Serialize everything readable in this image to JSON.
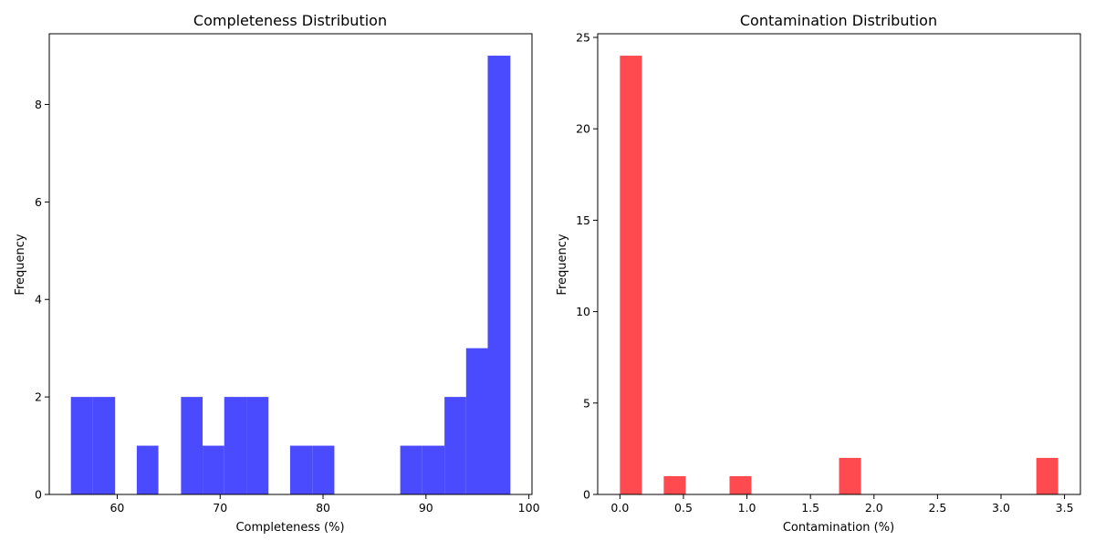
{
  "colors": {
    "completeness": "#4a4aff",
    "contamination": "#ff4a4f"
  },
  "chart_data": [
    {
      "type": "bar",
      "title": "Completeness Distribution",
      "xlabel": "Completeness (%)",
      "ylabel": "Frequency",
      "xlim": [
        53.4,
        100.3
      ],
      "ylim": [
        0,
        9.45
      ],
      "xticks": [
        60,
        70,
        80,
        90,
        100
      ],
      "yticks": [
        0,
        2,
        4,
        6,
        8
      ],
      "bins": [
        {
          "x0": 55.5,
          "x1": 57.6,
          "count": 2
        },
        {
          "x0": 57.6,
          "x1": 59.8,
          "count": 2
        },
        {
          "x0": 59.8,
          "x1": 61.9,
          "count": 0
        },
        {
          "x0": 61.9,
          "x1": 64.0,
          "count": 1
        },
        {
          "x0": 64.0,
          "x1": 66.2,
          "count": 0
        },
        {
          "x0": 66.2,
          "x1": 68.3,
          "count": 2
        },
        {
          "x0": 68.3,
          "x1": 70.4,
          "count": 1
        },
        {
          "x0": 70.4,
          "x1": 72.6,
          "count": 2
        },
        {
          "x0": 72.6,
          "x1": 74.7,
          "count": 2
        },
        {
          "x0": 74.7,
          "x1": 76.8,
          "count": 0
        },
        {
          "x0": 76.8,
          "x1": 79.0,
          "count": 1
        },
        {
          "x0": 79.0,
          "x1": 81.1,
          "count": 1
        },
        {
          "x0": 81.1,
          "x1": 83.2,
          "count": 0
        },
        {
          "x0": 83.2,
          "x1": 85.4,
          "count": 0
        },
        {
          "x0": 85.4,
          "x1": 87.5,
          "count": 0
        },
        {
          "x0": 87.5,
          "x1": 89.6,
          "count": 1
        },
        {
          "x0": 89.6,
          "x1": 91.8,
          "count": 1
        },
        {
          "x0": 91.8,
          "x1": 93.9,
          "count": 2
        },
        {
          "x0": 93.9,
          "x1": 96.0,
          "count": 3
        },
        {
          "x0": 96.0,
          "x1": 98.2,
          "count": 9
        }
      ]
    },
    {
      "type": "bar",
      "title": "Contamination Distribution",
      "xlabel": "Contamination (%)",
      "ylabel": "Frequency",
      "xlim": [
        -0.175,
        3.625
      ],
      "ylim": [
        0,
        25.2
      ],
      "xticks": [
        0.0,
        0.5,
        1.0,
        1.5,
        2.0,
        2.5,
        3.0,
        3.5
      ],
      "yticks": [
        0,
        5,
        10,
        15,
        20,
        25
      ],
      "bins": [
        {
          "x0": 0.0,
          "x1": 0.173,
          "count": 24
        },
        {
          "x0": 0.345,
          "x1": 0.518,
          "count": 1
        },
        {
          "x0": 0.863,
          "x1": 1.035,
          "count": 1
        },
        {
          "x0": 1.725,
          "x1": 1.898,
          "count": 2
        },
        {
          "x0": 3.278,
          "x1": 3.45,
          "count": 2
        }
      ]
    }
  ]
}
